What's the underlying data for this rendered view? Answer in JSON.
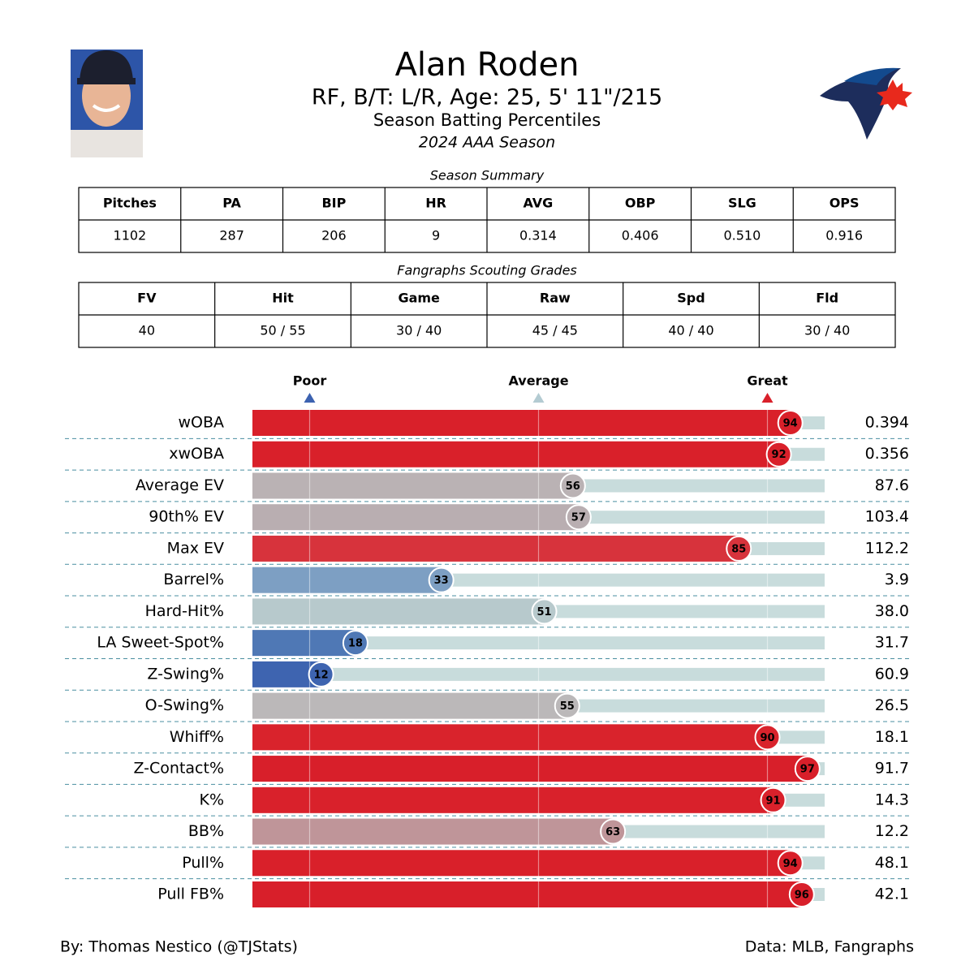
{
  "header": {
    "title": "Alan Roden",
    "subtitle": "RF, B/T: L/R, Age: 25, 5' 11\"/215",
    "heading": "Season Batting Percentiles",
    "season": "2024 AAA Season"
  },
  "summary": {
    "caption": "Season Summary",
    "columns": [
      "Pitches",
      "PA",
      "BIP",
      "HR",
      "AVG",
      "OBP",
      "SLG",
      "OPS"
    ],
    "rows": [
      [
        "1102",
        "287",
        "206",
        "9",
        "0.314",
        "0.406",
        "0.510",
        "0.916"
      ]
    ]
  },
  "grades": {
    "caption": "Fangraphs Scouting Grades",
    "columns": [
      "FV",
      "Hit",
      "Game",
      "Raw",
      "Spd",
      "Fld"
    ],
    "rows": [
      [
        "40",
        "50 / 55",
        "30 / 40",
        "45 / 45",
        "40 / 40",
        "30 / 40"
      ]
    ]
  },
  "chart_data": {
    "type": "bar",
    "orientation": "horizontal",
    "categories": [
      "wOBA",
      "xwOBA",
      "Average EV",
      "90th% EV",
      "Max EV",
      "Barrel%",
      "Hard-Hit%",
      "LA Sweet-Spot%",
      "Z-Swing%",
      "O-Swing%",
      "Whiff%",
      "Z-Contact%",
      "K%",
      "BB%",
      "Pull%",
      "Pull FB%"
    ],
    "values": [
      94,
      92,
      56,
      57,
      85,
      33,
      51,
      18,
      12,
      55,
      90,
      97,
      91,
      63,
      94,
      96
    ],
    "colors": [
      "#d9202a",
      "#d9202a",
      "#bab2b4",
      "#b9aeb1",
      "#d7333c",
      "#7d9fc3",
      "#b7c9cc",
      "#4f78b5",
      "#3e64b0",
      "#bbb8b9",
      "#d9232c",
      "#d81f2a",
      "#d9212b",
      "#bf9599",
      "#d9202a",
      "#d81f2a"
    ],
    "metric_values": [
      "0.394",
      "0.356",
      "87.6",
      "103.4",
      "112.2",
      "3.9",
      "38.0",
      "31.7",
      "60.9",
      "26.5",
      "18.1",
      "91.7",
      "14.3",
      "12.2",
      "48.1",
      "42.1"
    ],
    "xlim": [
      0,
      100
    ],
    "xticks": [
      {
        "value": 10,
        "label": "Poor"
      },
      {
        "value": 50,
        "label": "Average"
      },
      {
        "value": 90,
        "label": "Great"
      }
    ],
    "tick_colors": [
      "#3c62b0",
      "#b3cbd2",
      "#d9202a"
    ],
    "track_color": "#c8dcdc",
    "grid": true
  },
  "footer": {
    "left": "By: Thomas Nestico (@TJStats)",
    "right": "Data: MLB, Fangraphs"
  }
}
